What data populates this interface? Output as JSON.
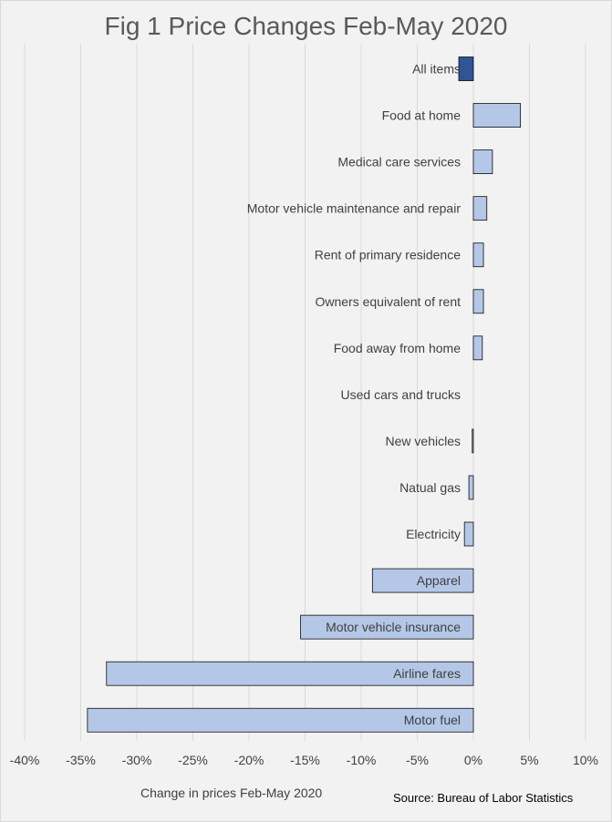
{
  "chart_data": {
    "type": "bar",
    "orientation": "horizontal",
    "title": "Fig 1 Price Changes Feb-May 2020",
    "xlabel": "Change in prices Feb-May 2020",
    "xlim": [
      -40,
      10
    ],
    "xticks": [
      -40,
      -35,
      -30,
      -25,
      -20,
      -15,
      -10,
      -5,
      0,
      5,
      10
    ],
    "xtick_labels": [
      "-40%",
      "-35%",
      "-30%",
      "-25%",
      "-20%",
      "-15%",
      "-10%",
      "-5%",
      "0%",
      "5%",
      "10%"
    ],
    "grid": true,
    "categories": [
      "All items",
      "Food at home",
      "Medical care services",
      "Motor vehicle maintenance and repair",
      "Rent of primary residence",
      "Owners equivalent of rent",
      "Food away from home",
      "Used cars and trucks",
      "New vehicles",
      "Natual gas",
      "Electricity",
      "Apparel",
      "Motor vehicle insurance",
      "Airline fares",
      "Motor fuel"
    ],
    "values": [
      -1.3,
      4.2,
      1.7,
      1.2,
      0.9,
      0.9,
      0.8,
      0.0,
      -0.1,
      -0.4,
      -0.8,
      -9.0,
      -15.4,
      -32.7,
      -34.4
    ],
    "highlight_index": 0,
    "colors": {
      "bar": "#b4c7e7",
      "highlight": "#2f5597",
      "bar_edge": "#000000",
      "grid": "#d9d9d9",
      "label": "#404040",
      "background": "#f2f2f2"
    }
  },
  "source_note": "Source: Bureau of Labor Statistics"
}
